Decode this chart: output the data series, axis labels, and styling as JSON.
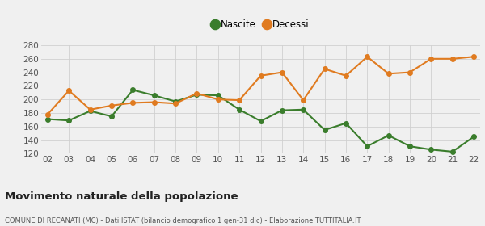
{
  "years": [
    "02",
    "03",
    "04",
    "05",
    "06",
    "07",
    "08",
    "09",
    "10",
    "11",
    "12",
    "13",
    "14",
    "15",
    "16",
    "17",
    "18",
    "19",
    "20",
    "21",
    "22"
  ],
  "nascite": [
    171,
    169,
    183,
    175,
    214,
    206,
    197,
    207,
    206,
    185,
    168,
    184,
    185,
    155,
    165,
    131,
    147,
    131,
    126,
    123,
    145
  ],
  "decessi": [
    178,
    213,
    185,
    191,
    195,
    196,
    194,
    209,
    200,
    199,
    235,
    240,
    199,
    245,
    235,
    263,
    238,
    240,
    260,
    260,
    263
  ],
  "nascite_color": "#3a7d2c",
  "decessi_color": "#e07b20",
  "background_color": "#f0f0f0",
  "grid_color": "#d0d0d0",
  "title": "Movimento naturale della popolazione",
  "subtitle": "COMUNE DI RECANATI (MC) - Dati ISTAT (bilancio demografico 1 gen-31 dic) - Elaborazione TUTTITALIA.IT",
  "legend_nascite": "Nascite",
  "legend_decessi": "Decessi",
  "ylim_min": 120,
  "ylim_max": 280,
  "yticks": [
    120,
    140,
    160,
    180,
    200,
    220,
    240,
    260,
    280
  ],
  "marker_size": 4,
  "line_width": 1.5
}
